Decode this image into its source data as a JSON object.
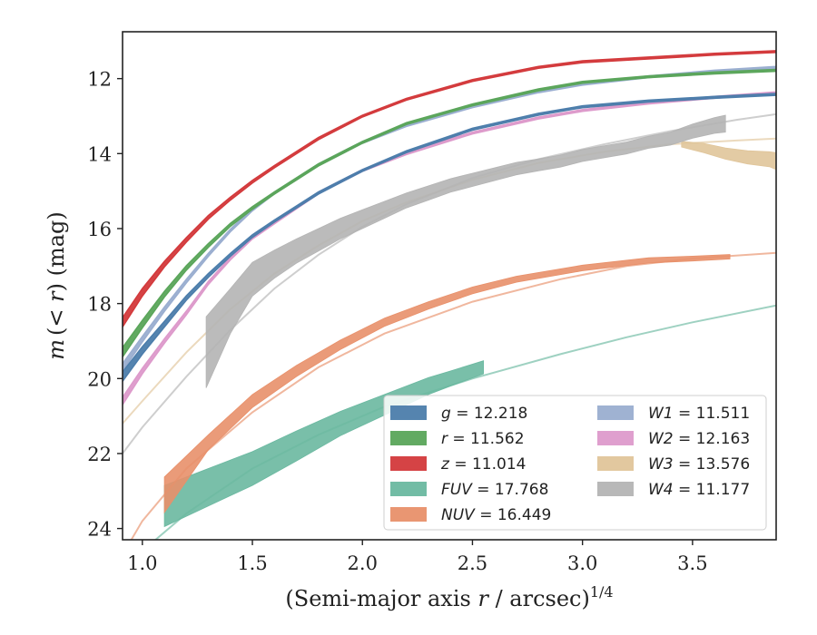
{
  "chart_data": {
    "type": "line",
    "xlabel_prefix": "(Semi-major axis ",
    "xlabel_var": "r",
    "xlabel_mid": " / arcsec)",
    "xlabel_sup": "1/4",
    "ylabel_m": "m",
    "ylabel_mid": "(< ",
    "ylabel_r": "r",
    "ylabel_end": ") (mag)",
    "xlim": [
      0.91,
      3.88
    ],
    "ylim": [
      24.3,
      10.75
    ],
    "y_inverted": true,
    "xticks": [
      1.0,
      1.5,
      2.0,
      2.5,
      3.0,
      3.5
    ],
    "xtick_labels": [
      "1.0",
      "1.5",
      "2.0",
      "2.5",
      "3.0",
      "3.5"
    ],
    "yticks": [
      12,
      14,
      16,
      18,
      20,
      22,
      24
    ],
    "ytick_labels": [
      "12",
      "14",
      "16",
      "18",
      "20",
      "22",
      "24"
    ],
    "legend_position": "lower-right",
    "series": [
      {
        "band": "g",
        "value": "12.218",
        "color": "#4c7dab",
        "kind": "narrow",
        "x": [
          0.91,
          1.0,
          1.1,
          1.2,
          1.3,
          1.4,
          1.5,
          1.6,
          1.8,
          2.0,
          2.2,
          2.5,
          2.8,
          3.0,
          3.3,
          3.6,
          3.88
        ],
        "y": [
          19.95,
          19.25,
          18.55,
          17.85,
          17.25,
          16.7,
          16.2,
          15.8,
          15.05,
          14.45,
          13.95,
          13.35,
          12.95,
          12.75,
          12.6,
          12.5,
          12.42
        ],
        "width": [
          0.25,
          0.2,
          0.15,
          0.12,
          0.1,
          0.08,
          0.07,
          0.06,
          0.06,
          0.05,
          0.05,
          0.05,
          0.05,
          0.05,
          0.05,
          0.05,
          0.05
        ]
      },
      {
        "band": "r",
        "value": "11.562",
        "color": "#5aa55a",
        "kind": "narrow",
        "x": [
          0.91,
          1.0,
          1.1,
          1.2,
          1.3,
          1.4,
          1.5,
          1.6,
          1.8,
          2.0,
          2.2,
          2.5,
          2.8,
          3.0,
          3.3,
          3.6,
          3.88
        ],
        "y": [
          19.3,
          18.55,
          17.75,
          17.05,
          16.45,
          15.9,
          15.45,
          15.05,
          14.3,
          13.7,
          13.2,
          12.7,
          12.3,
          12.1,
          11.95,
          11.85,
          11.78
        ],
        "width": [
          0.25,
          0.2,
          0.15,
          0.12,
          0.1,
          0.08,
          0.07,
          0.06,
          0.06,
          0.05,
          0.05,
          0.05,
          0.05,
          0.05,
          0.05,
          0.05,
          0.05
        ]
      },
      {
        "band": "z",
        "value": "11.014",
        "color": "#d3393b",
        "kind": "narrow",
        "x": [
          0.91,
          1.0,
          1.1,
          1.2,
          1.3,
          1.4,
          1.5,
          1.6,
          1.8,
          2.0,
          2.2,
          2.5,
          2.8,
          3.0,
          3.3,
          3.6,
          3.88
        ],
        "y": [
          18.5,
          17.7,
          16.95,
          16.3,
          15.7,
          15.2,
          14.75,
          14.35,
          13.6,
          13.0,
          12.55,
          12.05,
          11.7,
          11.55,
          11.45,
          11.35,
          11.28
        ],
        "width": [
          0.25,
          0.2,
          0.15,
          0.12,
          0.1,
          0.08,
          0.07,
          0.06,
          0.06,
          0.05,
          0.05,
          0.05,
          0.05,
          0.05,
          0.05,
          0.05,
          0.05
        ]
      },
      {
        "band": "FUV",
        "value": "17.768",
        "color": "#6ab8a0",
        "kind": "fuv",
        "x": [
          1.1,
          1.3,
          1.5,
          1.7,
          1.9,
          2.1,
          2.3,
          2.4,
          2.55
        ],
        "y": [
          23.4,
          22.9,
          22.4,
          21.8,
          21.2,
          20.7,
          20.2,
          20.0,
          19.7
        ],
        "width": [
          1.1,
          1.0,
          0.9,
          0.8,
          0.65,
          0.55,
          0.45,
          0.4,
          0.35
        ],
        "model_x": [
          0.91,
          1.0,
          1.2,
          1.5,
          1.8,
          2.1,
          2.5,
          2.9,
          3.2,
          3.5,
          3.88
        ],
        "model_y": [
          25.2,
          24.6,
          23.6,
          22.4,
          21.5,
          20.75,
          20.0,
          19.35,
          18.9,
          18.5,
          18.05
        ]
      },
      {
        "band": "NUV",
        "value": "16.449",
        "color": "#e8906a",
        "kind": "nuv",
        "x": [
          1.1,
          1.3,
          1.5,
          1.7,
          1.9,
          2.1,
          2.3,
          2.5,
          2.7,
          3.0,
          3.3,
          3.5,
          3.67
        ],
        "y": [
          23.1,
          21.7,
          20.6,
          19.8,
          19.1,
          18.5,
          18.05,
          17.65,
          17.35,
          17.05,
          16.85,
          16.8,
          16.75
        ],
        "width": [
          0.95,
          0.4,
          0.35,
          0.3,
          0.25,
          0.22,
          0.2,
          0.18,
          0.16,
          0.15,
          0.14,
          0.13,
          0.12
        ],
        "model_x": [
          0.91,
          1.0,
          1.2,
          1.5,
          1.8,
          2.1,
          2.5,
          2.9,
          3.2,
          3.5,
          3.88
        ],
        "model_y": [
          24.7,
          23.8,
          22.4,
          20.9,
          19.7,
          18.8,
          17.95,
          17.35,
          17.0,
          16.8,
          16.65
        ]
      },
      {
        "band": "W1",
        "value": "11.511",
        "color": "#9aaed0",
        "kind": "wise",
        "x": [
          0.91,
          1.0,
          1.1,
          1.2,
          1.3,
          1.4,
          1.5,
          1.6,
          1.8,
          2.0,
          2.2,
          2.5,
          2.8,
          3.0,
          3.3,
          3.6,
          3.88
        ],
        "y": [
          19.7,
          18.95,
          18.15,
          17.4,
          16.7,
          16.05,
          15.5,
          15.05,
          14.3,
          13.7,
          13.25,
          12.75,
          12.35,
          12.15,
          11.95,
          11.8,
          11.7
        ],
        "width": [
          0.2,
          0.15,
          0.12,
          0.1,
          0.08,
          0.07,
          0.06,
          0.05,
          0.05,
          0.05,
          0.05,
          0.05,
          0.05,
          0.05,
          0.05,
          0.05,
          0.05
        ]
      },
      {
        "band": "W2",
        "value": "12.163",
        "color": "#dd9acb",
        "kind": "wise",
        "x": [
          0.91,
          1.0,
          1.1,
          1.2,
          1.3,
          1.4,
          1.5,
          1.6,
          1.8,
          2.0,
          2.2,
          2.5,
          2.8,
          3.0,
          3.3,
          3.6,
          3.88
        ],
        "y": [
          20.6,
          19.8,
          19.0,
          18.25,
          17.45,
          16.8,
          16.25,
          15.85,
          15.05,
          14.45,
          14.0,
          13.45,
          13.05,
          12.85,
          12.65,
          12.5,
          12.38
        ],
        "width": [
          0.2,
          0.15,
          0.12,
          0.1,
          0.08,
          0.07,
          0.06,
          0.05,
          0.05,
          0.05,
          0.05,
          0.05,
          0.05,
          0.05,
          0.05,
          0.05,
          0.05
        ]
      },
      {
        "band": "W3",
        "value": "13.576",
        "color": "#e0c59a",
        "kind": "w3",
        "x": [
          3.45,
          3.55,
          3.65,
          3.75,
          3.85,
          3.88
        ],
        "y": [
          13.75,
          13.85,
          14.0,
          14.1,
          14.15,
          14.2
        ],
        "width": [
          0.15,
          0.25,
          0.3,
          0.35,
          0.4,
          0.45
        ],
        "model_x": [
          0.91,
          1.0,
          1.2,
          1.4,
          1.6,
          1.8,
          2.0,
          2.2,
          2.5,
          2.8,
          3.1,
          3.4,
          3.7,
          3.88
        ],
        "model_y": [
          21.2,
          20.6,
          19.3,
          18.15,
          17.2,
          16.45,
          15.8,
          15.3,
          14.7,
          14.25,
          13.95,
          13.75,
          13.65,
          13.6
        ]
      },
      {
        "band": "W4",
        "value": "11.177",
        "color": "#b4b4b4",
        "kind": "w4",
        "x": [
          1.29,
          1.4,
          1.5,
          1.6,
          1.7,
          1.8,
          1.9,
          2.0,
          2.1,
          2.2,
          2.3,
          2.4,
          2.5,
          2.6,
          2.7,
          2.8,
          2.9,
          3.0,
          3.1,
          3.2,
          3.3,
          3.4,
          3.5,
          3.6,
          3.65
        ],
        "y": [
          19.3,
          18.2,
          17.35,
          16.95,
          16.6,
          16.3,
          16.0,
          15.75,
          15.5,
          15.25,
          15.05,
          14.85,
          14.7,
          14.55,
          14.4,
          14.3,
          14.2,
          14.05,
          13.95,
          13.85,
          13.7,
          13.6,
          13.4,
          13.25,
          13.2
        ],
        "width": [
          1.9,
          1.2,
          0.9,
          0.75,
          0.65,
          0.6,
          0.55,
          0.5,
          0.45,
          0.4,
          0.38,
          0.36,
          0.35,
          0.34,
          0.33,
          0.32,
          0.32,
          0.32,
          0.32,
          0.32,
          0.32,
          0.35,
          0.38,
          0.42,
          0.45
        ],
        "model_x": [
          0.91,
          1.0,
          1.2,
          1.4,
          1.6,
          1.8,
          2.0,
          2.2,
          2.5,
          2.8,
          3.1,
          3.4,
          3.7,
          3.88
        ],
        "model_y": [
          22.0,
          21.3,
          19.95,
          18.7,
          17.6,
          16.7,
          15.95,
          15.35,
          14.65,
          14.15,
          13.75,
          13.4,
          13.1,
          12.95
        ]
      }
    ]
  }
}
